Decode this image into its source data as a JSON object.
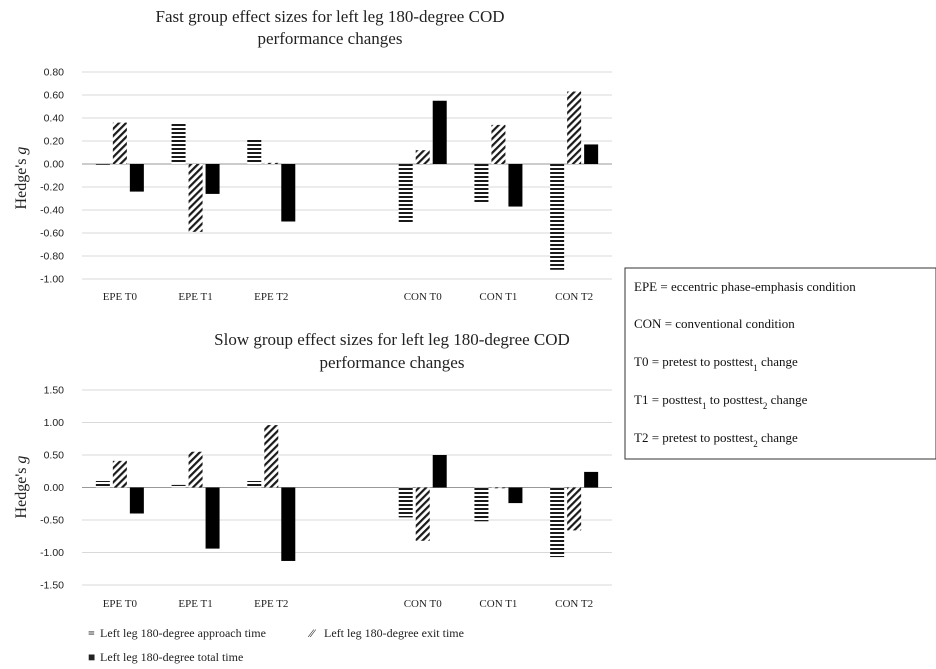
{
  "chart_data": [
    {
      "type": "bar",
      "title": "Fast group effect sizes for left leg 180-degree COD",
      "title_line2": "performance changes",
      "ylabel": "Hedge's",
      "ylabel_italic": "g",
      "ylim": [
        -1.0,
        0.8
      ],
      "yticks": [
        "0.80",
        "0.60",
        "0.40",
        "0.20",
        "0.00",
        "-0.20",
        "-0.40",
        "-0.60",
        "-0.80",
        "-1.00"
      ],
      "ytick_values": [
        0.8,
        0.6,
        0.4,
        0.2,
        0.0,
        -0.2,
        -0.4,
        -0.6,
        -0.8,
        -1.0
      ],
      "grid": true,
      "categories": [
        "EPE T0",
        "EPE T1",
        "EPE T2",
        "",
        "CON T0",
        "CON T1",
        "CON T2"
      ],
      "series": [
        {
          "name": "Left leg 180-degree approach time",
          "pattern": "horizontal",
          "values": [
            0.0,
            0.35,
            0.21,
            null,
            -0.51,
            -0.34,
            -0.92
          ]
        },
        {
          "name": "Left leg 180-degree exit time",
          "pattern": "diagonal",
          "values": [
            0.36,
            -0.59,
            0.01,
            null,
            0.12,
            0.34,
            0.63
          ]
        },
        {
          "name": "Left leg 180-degree total time",
          "pattern": "solid",
          "values": [
            -0.24,
            -0.26,
            -0.5,
            null,
            0.55,
            -0.37,
            0.17
          ]
        }
      ]
    },
    {
      "type": "bar",
      "title": "Slow group effect sizes for left leg 180-degree COD",
      "title_line2": "performance changes",
      "ylabel": "Hedge's",
      "ylabel_italic": "g",
      "ylim": [
        -1.5,
        1.5
      ],
      "yticks": [
        "1.50",
        "1.00",
        "0.50",
        "0.00",
        "-0.50",
        "-1.00",
        "-1.50"
      ],
      "ytick_values": [
        1.5,
        1.0,
        0.5,
        0.0,
        -0.5,
        -1.0,
        -1.5
      ],
      "grid": true,
      "categories": [
        "EPE T0",
        "EPE T1",
        "EPE T2",
        "",
        "CON T0",
        "CON T1",
        "CON T2"
      ],
      "series": [
        {
          "name": "Left leg 180-degree approach time",
          "pattern": "horizontal",
          "values": [
            0.1,
            0.04,
            0.1,
            null,
            -0.46,
            -0.52,
            -1.07
          ]
        },
        {
          "name": "Left leg 180-degree exit time",
          "pattern": "diagonal",
          "values": [
            0.41,
            0.55,
            0.96,
            null,
            -0.82,
            0.0,
            -0.66
          ]
        },
        {
          "name": "Left leg 180-degree total time",
          "pattern": "solid",
          "values": [
            -0.4,
            -0.94,
            -1.13,
            null,
            0.5,
            -0.24,
            0.24
          ]
        }
      ]
    }
  ],
  "legend": {
    "items": [
      {
        "marker": "=",
        "label": "Left leg 180-degree approach time"
      },
      {
        "marker": "⁄⁄",
        "label": "Left leg 180-degree exit time"
      },
      {
        "marker": "■",
        "label": "Left leg 180-degree total time"
      }
    ]
  },
  "key_box": {
    "lines": [
      {
        "text": "EPE = eccentric phase-emphasis condition"
      },
      {
        "text": "CON = conventional condition"
      },
      {
        "pre": "T0 = pretest to posttest",
        "sub": "1",
        "post": " change"
      },
      {
        "pre": "T1 = posttest",
        "sub": "1",
        "mid": " to posttest",
        "sub2": "2",
        "post": " change"
      },
      {
        "pre": "T2 = pretest to posttest",
        "sub": "2",
        "post": " change"
      }
    ]
  }
}
